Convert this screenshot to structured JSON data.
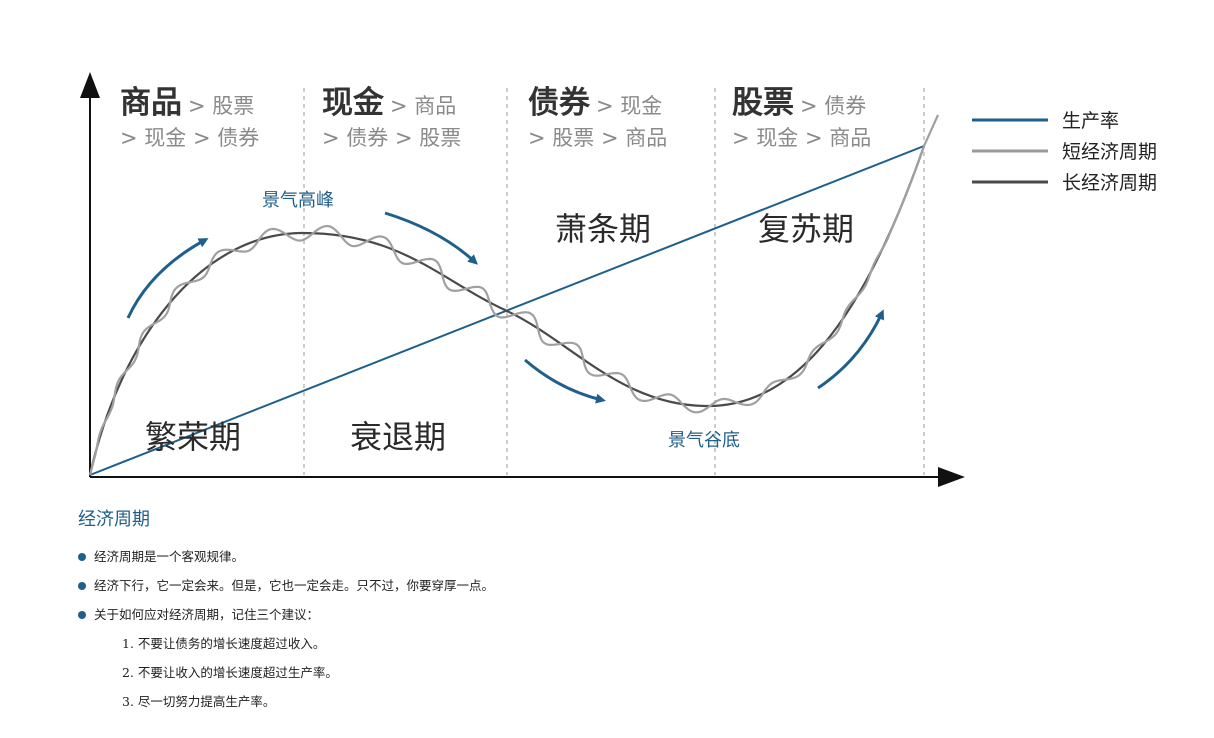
{
  "phases": [
    {
      "big": "商品",
      "small": "> 股票",
      "line2": "> 现金 > 债券"
    },
    {
      "big": "现金",
      "small": "> 商品",
      "line2": "> 债券 > 股票"
    },
    {
      "big": "债券",
      "small": "> 现金",
      "line2": "> 股票 > 商品"
    },
    {
      "big": "股票",
      "small": "> 债券",
      "line2": "> 现金 > 商品"
    }
  ],
  "stages": {
    "prosperity": "繁荣期",
    "recession": "衰退期",
    "depression": "萧条期",
    "recovery": "复苏期"
  },
  "annotations": {
    "peak": "景气高峰",
    "trough": "景气谷底"
  },
  "legend": [
    {
      "label": "生产率",
      "color": "#1f5f8b"
    },
    {
      "label": "短经济周期",
      "color": "#9a9a9a"
    },
    {
      "label": "长经济周期",
      "color": "#4a4a4a"
    }
  ],
  "notes": {
    "title": "经济周期",
    "bullets": [
      "经济周期是一个客观规律。",
      "经济下行，它一定会来。但是，它也一定会走。只不过，你要穿厚一点。",
      "关于如何应对经济周期，记住三个建议："
    ],
    "advice": [
      "1. 不要让债务的增长速度超过收入。",
      "2. 不要让收入的增长速度超过生产率。",
      "3. 尽一切努力提高生产率。"
    ]
  }
}
